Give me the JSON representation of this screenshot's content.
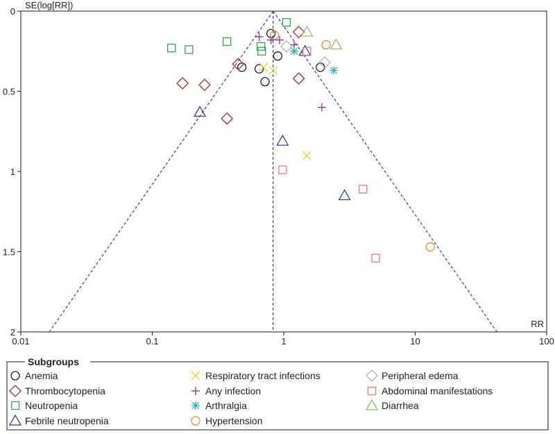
{
  "chart_data": {
    "type": "scatter",
    "title": "",
    "xlabel": "RR",
    "ylabel": "SE(log[RR])",
    "xscale": "log",
    "xlim": [
      0.01,
      100
    ],
    "ylim": [
      0,
      2
    ],
    "y_inverted": true,
    "x_ticks": [
      "0.01",
      "0.1",
      "1",
      "10",
      "100"
    ],
    "y_ticks": [
      "0",
      "0.5",
      "1",
      "1.5",
      "2"
    ],
    "pooled_rr": 0.83,
    "grid": false,
    "legend_title": "Subgroups",
    "legend_placement": "bottom",
    "series": [
      {
        "name": "Anemia",
        "marker": "circle",
        "color": "#1a1a1a",
        "points": [
          [
            0.8,
            0.14
          ],
          [
            0.48,
            0.35
          ],
          [
            0.65,
            0.36
          ],
          [
            0.9,
            0.28
          ],
          [
            0.72,
            0.44
          ],
          [
            1.9,
            0.35
          ]
        ]
      },
      {
        "name": "Thrombocytopenia",
        "marker": "diamond",
        "color": "#b22a2a",
        "points": [
          [
            0.17,
            0.45
          ],
          [
            0.25,
            0.46
          ],
          [
            0.45,
            0.33
          ],
          [
            0.37,
            0.67
          ],
          [
            1.3,
            0.13
          ],
          [
            1.3,
            0.42
          ]
        ]
      },
      {
        "name": "Neutropenia",
        "marker": "square",
        "color": "#2ea84a",
        "points": [
          [
            0.14,
            0.23
          ],
          [
            0.19,
            0.24
          ],
          [
            0.37,
            0.19
          ],
          [
            0.67,
            0.22
          ],
          [
            0.68,
            0.25
          ],
          [
            1.05,
            0.07
          ]
        ]
      },
      {
        "name": "Febrile neutropenia",
        "marker": "triangle",
        "color": "#2d3f8f",
        "points": [
          [
            0.23,
            0.63
          ],
          [
            0.98,
            0.81
          ],
          [
            1.45,
            0.25
          ],
          [
            2.9,
            1.15
          ]
        ]
      },
      {
        "name": "Respiratory tract infections",
        "marker": "x",
        "color": "#e6d21c",
        "points": [
          [
            0.7,
            0.35
          ],
          [
            0.83,
            0.37
          ],
          [
            1.5,
            0.9
          ]
        ]
      },
      {
        "name": "Any infection",
        "marker": "plus",
        "color": "#8a2a8a",
        "points": [
          [
            0.65,
            0.16
          ],
          [
            0.8,
            0.18
          ],
          [
            0.93,
            0.18
          ],
          [
            1.2,
            0.21
          ],
          [
            1.95,
            0.6
          ]
        ]
      },
      {
        "name": "Arthralgia",
        "marker": "asterisk",
        "color": "#2ab0b8",
        "points": [
          [
            1.2,
            0.25
          ],
          [
            2.4,
            0.37
          ]
        ]
      },
      {
        "name": "Hypertension",
        "marker": "circle",
        "color": "#e08a2c",
        "points": [
          [
            0.85,
            0.15
          ],
          [
            2.1,
            0.21
          ],
          [
            13,
            1.47
          ]
        ]
      },
      {
        "name": "Peripheral edema",
        "marker": "diamond",
        "color": "#b0b0b0",
        "points": [
          [
            1.05,
            0.22
          ],
          [
            2.05,
            0.32
          ]
        ]
      },
      {
        "name": "Abdominal manifestations",
        "marker": "square",
        "color": "#ec7a7a",
        "points": [
          [
            0.98,
            0.99
          ],
          [
            1.5,
            0.25
          ],
          [
            4.0,
            1.11
          ],
          [
            5.0,
            1.54
          ]
        ]
      },
      {
        "name": "Diarrhea",
        "marker": "triangle",
        "color": "#8cc45a",
        "points": [
          [
            1.5,
            0.13
          ],
          [
            2.5,
            0.21
          ]
        ]
      }
    ]
  }
}
